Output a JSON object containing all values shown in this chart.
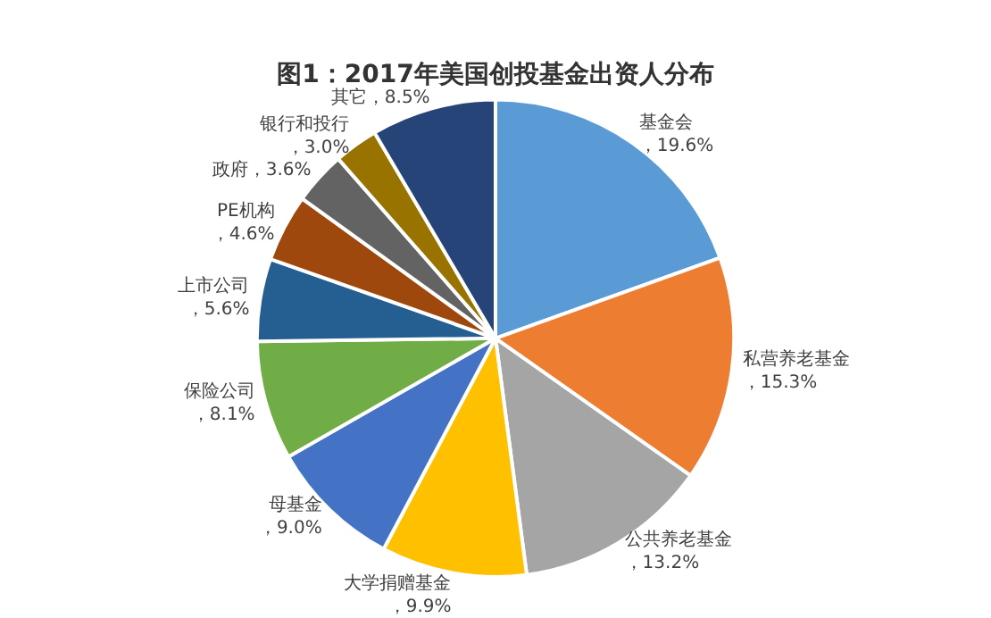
{
  "chart_data": {
    "type": "pie",
    "title": "图1：2017年美国创投基金出资人分布",
    "categories": [
      "基金会",
      "私营养老基金",
      "公共养老基金",
      "大学捐赠基金",
      "母基金",
      "保险公司",
      "上市公司",
      "PE机构",
      "政府",
      "银行和投行",
      "其它"
    ],
    "values": [
      19.6,
      15.3,
      13.2,
      9.9,
      9.0,
      8.1,
      5.6,
      4.6,
      3.6,
      3.0,
      8.5
    ],
    "value_labels": [
      "，19.6%",
      "，15.3%",
      "，13.2%",
      "，9.9%",
      "，9.0%",
      "，8.1%",
      "，5.6%",
      "，4.6%",
      "，3.6%",
      "，3.0%",
      "，8.5%"
    ],
    "colors": [
      "#5b9bd5",
      "#ed7d31",
      "#a5a5a5",
      "#ffc000",
      "#4472c4",
      "#70ad47",
      "#255e91",
      "#9e480e",
      "#636363",
      "#997300",
      "#264478"
    ]
  }
}
